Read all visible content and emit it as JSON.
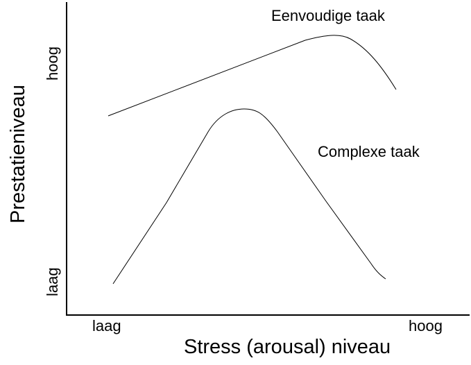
{
  "diagram": {
    "x_axis": {
      "title": "Stress (arousal) niveau",
      "low_label": "laag",
      "high_label": "hoog"
    },
    "y_axis": {
      "title": "Prestatieniveau",
      "low_label": "laag",
      "high_label": "hoog"
    },
    "curves": [
      {
        "label": "Eenvoudige taak"
      },
      {
        "label": "Complexe taak"
      }
    ]
  }
}
